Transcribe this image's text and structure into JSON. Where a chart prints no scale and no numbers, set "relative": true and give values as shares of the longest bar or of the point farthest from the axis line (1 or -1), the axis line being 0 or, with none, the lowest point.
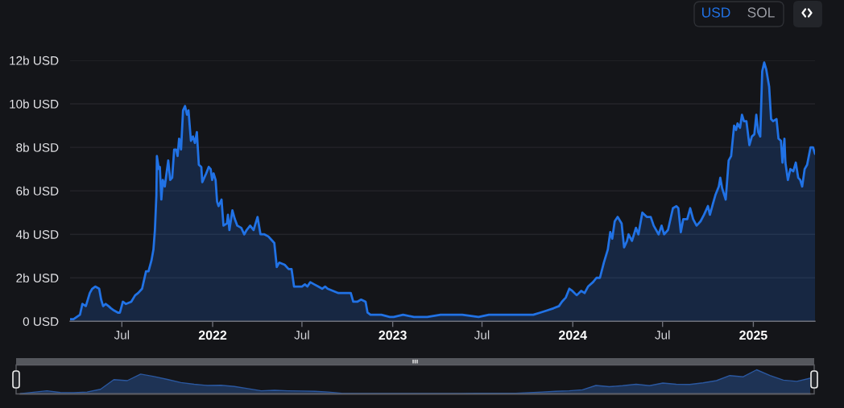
{
  "chart_data": [
    {
      "type": "area",
      "x": [
        "2021-03-18",
        "2021-03-25",
        "2021-04-07",
        "2021-04-12",
        "2021-04-19",
        "2021-04-27",
        "2021-05-02",
        "2021-05-08",
        "2021-05-16",
        "2021-05-20",
        "2021-05-24",
        "2021-05-29",
        "2021-06-04",
        "2021-06-09",
        "2021-06-15",
        "2021-06-23",
        "2021-06-27",
        "2021-07-03",
        "2021-07-09",
        "2021-07-20",
        "2021-07-28",
        "2021-08-03",
        "2021-08-11",
        "2021-08-19",
        "2021-08-24",
        "2021-08-30",
        "2021-09-03",
        "2021-09-06",
        "2021-09-09",
        "2021-09-10",
        "2021-09-14",
        "2021-09-16",
        "2021-09-19",
        "2021-09-22",
        "2021-09-26",
        "2021-10-03",
        "2021-10-07",
        "2021-10-11",
        "2021-10-15",
        "2021-10-19",
        "2021-10-22",
        "2021-10-25",
        "2021-10-29",
        "2021-11-02",
        "2021-11-06",
        "2021-11-10",
        "2021-11-13",
        "2021-11-18",
        "2021-11-22",
        "2021-11-26",
        "2021-11-30",
        "2021-12-04",
        "2021-12-09",
        "2021-12-11",
        "2021-12-15",
        "2021-12-19",
        "2021-12-24",
        "2021-12-28",
        "2021-12-31",
        "2022-01-03",
        "2022-01-07",
        "2022-01-10",
        "2022-01-13",
        "2022-01-19",
        "2022-01-23",
        "2022-01-30",
        "2022-02-01",
        "2022-02-04",
        "2022-02-10",
        "2022-02-15",
        "2022-02-20",
        "2022-02-28",
        "2022-03-06",
        "2022-03-11",
        "2022-03-18",
        "2022-03-25",
        "2022-04-02",
        "2022-04-08",
        "2022-04-16",
        "2022-04-24",
        "2022-05-02",
        "2022-05-06",
        "2022-05-11",
        "2022-05-16",
        "2022-05-27",
        "2022-06-04",
        "2022-06-10",
        "2022-06-15",
        "2022-06-23",
        "2022-07-01",
        "2022-07-07",
        "2022-07-12",
        "2022-07-18",
        "2022-07-26",
        "2022-08-03",
        "2022-08-11",
        "2022-08-17",
        "2022-08-22",
        "2022-09-02",
        "2022-09-13",
        "2022-09-21",
        "2022-10-08",
        "2022-10-13",
        "2022-10-21",
        "2022-10-29",
        "2022-11-07",
        "2022-11-11",
        "2022-11-17",
        "2022-12-09",
        "2022-12-26",
        "2023-01-03",
        "2023-01-22",
        "2023-02-13",
        "2023-03-12",
        "2023-04-08",
        "2023-05-22",
        "2023-06-24",
        "2023-07-15",
        "2023-08-12",
        "2023-09-08",
        "2023-10-13",
        "2023-10-27",
        "2023-11-10",
        "2023-11-23",
        "2023-12-04",
        "2023-12-10",
        "2023-12-18",
        "2023-12-25",
        "2023-12-31",
        "2024-01-09",
        "2024-01-18",
        "2024-01-25",
        "2024-02-01",
        "2024-02-11",
        "2024-02-18",
        "2024-02-25",
        "2024-03-04",
        "2024-03-12",
        "2024-03-17",
        "2024-03-21",
        "2024-03-26",
        "2024-04-01",
        "2024-04-09",
        "2024-04-14",
        "2024-04-20",
        "2024-04-23",
        "2024-04-30",
        "2024-05-08",
        "2024-05-13",
        "2024-05-21",
        "2024-05-30",
        "2024-06-07",
        "2024-06-13",
        "2024-06-23",
        "2024-06-29",
        "2024-07-04",
        "2024-07-12",
        "2024-07-22",
        "2024-07-29",
        "2024-08-02",
        "2024-08-07",
        "2024-08-12",
        "2024-08-20",
        "2024-08-26",
        "2024-09-01",
        "2024-09-08",
        "2024-09-16",
        "2024-09-23",
        "2024-10-01",
        "2024-10-05",
        "2024-10-11",
        "2024-10-16",
        "2024-10-23",
        "2024-10-26",
        "2024-10-30",
        "2024-11-06",
        "2024-11-12",
        "2024-11-17",
        "2024-11-23",
        "2024-11-27",
        "2024-11-30",
        "2024-12-05",
        "2024-12-09",
        "2024-12-13",
        "2024-12-18",
        "2024-12-24",
        "2024-12-29",
        "2025-01-03",
        "2025-01-07",
        "2025-01-11",
        "2025-01-15",
        "2025-01-19",
        "2025-01-23",
        "2025-01-27",
        "2025-01-30",
        "2025-02-02",
        "2025-02-06",
        "2025-02-10",
        "2025-02-17",
        "2025-02-21",
        "2025-02-26",
        "2025-03-01",
        "2025-03-05",
        "2025-03-07",
        "2025-03-12",
        "2025-03-17",
        "2025-03-23",
        "2025-03-28",
        "2025-04-02",
        "2025-04-06",
        "2025-04-10",
        "2025-04-15",
        "2025-04-20",
        "2025-04-27",
        "2025-05-02",
        "2025-05-06"
      ],
      "series": [
        {
          "color": "#2172e5",
          "values": [
            0.1,
            0.1,
            0.3,
            0.8,
            0.7,
            1.3,
            1.5,
            1.6,
            1.5,
            1.0,
            0.7,
            0.8,
            0.7,
            0.6,
            0.5,
            0.4,
            0.4,
            0.9,
            0.8,
            0.9,
            1.2,
            1.3,
            1.5,
            2.3,
            2.3,
            2.8,
            3.3,
            4.2,
            5.8,
            7.6,
            7.0,
            7.1,
            5.6,
            6.5,
            6.2,
            7.4,
            6.5,
            6.6,
            7.9,
            7.9,
            7.6,
            8.4,
            7.9,
            9.7,
            9.9,
            9.5,
            9.7,
            8.3,
            8.5,
            8.2,
            8.7,
            7.2,
            7.1,
            6.4,
            6.6,
            6.8,
            7.1,
            7.0,
            6.5,
            6.8,
            6.5,
            5.5,
            5.3,
            5.6,
            4.4,
            4.5,
            4.9,
            4.2,
            5.1,
            4.7,
            4.4,
            4.3,
            4.0,
            4.2,
            4.4,
            4.2,
            4.8,
            4.0,
            4.0,
            3.9,
            3.7,
            3.6,
            2.5,
            2.7,
            2.6,
            2.4,
            2.4,
            1.6,
            1.6,
            1.6,
            1.7,
            1.6,
            1.8,
            1.7,
            1.6,
            1.5,
            1.6,
            1.5,
            1.4,
            1.3,
            1.3,
            1.3,
            0.9,
            0.9,
            1.0,
            0.9,
            0.4,
            0.3,
            0.3,
            0.2,
            0.2,
            0.3,
            0.2,
            0.2,
            0.3,
            0.3,
            0.2,
            0.3,
            0.3,
            0.3,
            0.3,
            0.4,
            0.5,
            0.6,
            0.7,
            0.9,
            1.1,
            1.5,
            1.4,
            1.2,
            1.4,
            1.3,
            1.6,
            1.8,
            2.0,
            2.0,
            2.7,
            3.3,
            4.1,
            3.8,
            4.6,
            4.8,
            4.5,
            3.4,
            3.7,
            4.0,
            3.7,
            4.3,
            4.0,
            5.0,
            4.8,
            4.8,
            4.4,
            4.0,
            4.4,
            4.0,
            4.2,
            5.2,
            5.3,
            5.2,
            4.1,
            4.7,
            4.7,
            5.2,
            4.7,
            4.4,
            4.6,
            4.9,
            5.3,
            4.9,
            5.4,
            5.8,
            6.2,
            6.6,
            6.1,
            5.6,
            7.4,
            7.6,
            9.0,
            8.8,
            9.1,
            8.9,
            9.5,
            9.2,
            9.2,
            8.1,
            8.5,
            8.6,
            9.5,
            8.7,
            8.5,
            11.5,
            11.9,
            11.6,
            11.2,
            10.8,
            9.3,
            9.2,
            9.3,
            8.4,
            8.3,
            7.3,
            8.4,
            7.3,
            6.5,
            7.0,
            6.9,
            7.3,
            6.6,
            6.5,
            6.2,
            7.0,
            7.2,
            8.0,
            8.0,
            7.7
          ]
        }
      ],
      "xlim": [
        "2021-03-18",
        "2025-05-06"
      ],
      "xticks": [
        {
          "value": "2021-07-01",
          "label": "Jul"
        },
        {
          "value": "2022-01-01",
          "label": "2022"
        },
        {
          "value": "2022-07-01",
          "label": "Jul"
        },
        {
          "value": "2023-01-01",
          "label": "2023"
        },
        {
          "value": "2023-07-01",
          "label": "Jul"
        },
        {
          "value": "2024-01-01",
          "label": "2024"
        },
        {
          "value": "2024-07-01",
          "label": "Jul"
        },
        {
          "value": "2025-01-01",
          "label": "2025"
        }
      ],
      "ylim": [
        0,
        12
      ],
      "yticks": [
        {
          "value": 0,
          "label": "0 USD"
        },
        {
          "value": 2,
          "label": "2b USD"
        },
        {
          "value": 4,
          "label": "4b USD"
        },
        {
          "value": 6,
          "label": "6b USD"
        },
        {
          "value": 8,
          "label": "8b USD"
        },
        {
          "value": 10,
          "label": "10b USD"
        },
        {
          "value": 12,
          "label": "12b USD"
        }
      ],
      "grid": "y",
      "annotations": [
        "USD",
        "SOL"
      ]
    },
    {
      "type": "area",
      "relative": true,
      "categories": [
        null,
        null,
        null,
        null,
        null,
        null,
        null,
        null,
        null,
        null,
        null,
        null,
        null,
        null,
        null,
        null,
        null,
        null,
        null,
        null,
        null,
        null,
        null,
        null,
        null,
        null,
        null,
        null,
        null,
        null,
        null,
        null,
        null,
        null,
        null,
        null,
        null,
        null,
        null,
        null,
        null,
        null,
        null,
        null,
        null,
        null,
        null,
        null,
        null,
        null,
        null,
        null,
        null,
        null,
        null,
        null,
        null,
        null,
        null,
        null
      ],
      "series": [
        {
          "color": "#2b58a0",
          "values": [
            0.01,
            0.07,
            0.13,
            0.06,
            0.05,
            0.08,
            0.19,
            0.59,
            0.55,
            0.82,
            0.72,
            0.6,
            0.47,
            0.4,
            0.35,
            0.36,
            0.31,
            0.22,
            0.13,
            0.15,
            0.13,
            0.12,
            0.11,
            0.08,
            0.03,
            0.02,
            0.02,
            0.02,
            0.02,
            0.02,
            0.02,
            0.02,
            0.02,
            0.02,
            0.03,
            0.03,
            0.03,
            0.03,
            0.05,
            0.08,
            0.11,
            0.13,
            0.17,
            0.35,
            0.3,
            0.34,
            0.4,
            0.34,
            0.45,
            0.4,
            0.39,
            0.46,
            0.55,
            0.76,
            0.71,
            1.0,
            0.76,
            0.57,
            0.52,
            0.65
          ]
        }
      ],
      "tick_labels": false
    }
  ]
}
